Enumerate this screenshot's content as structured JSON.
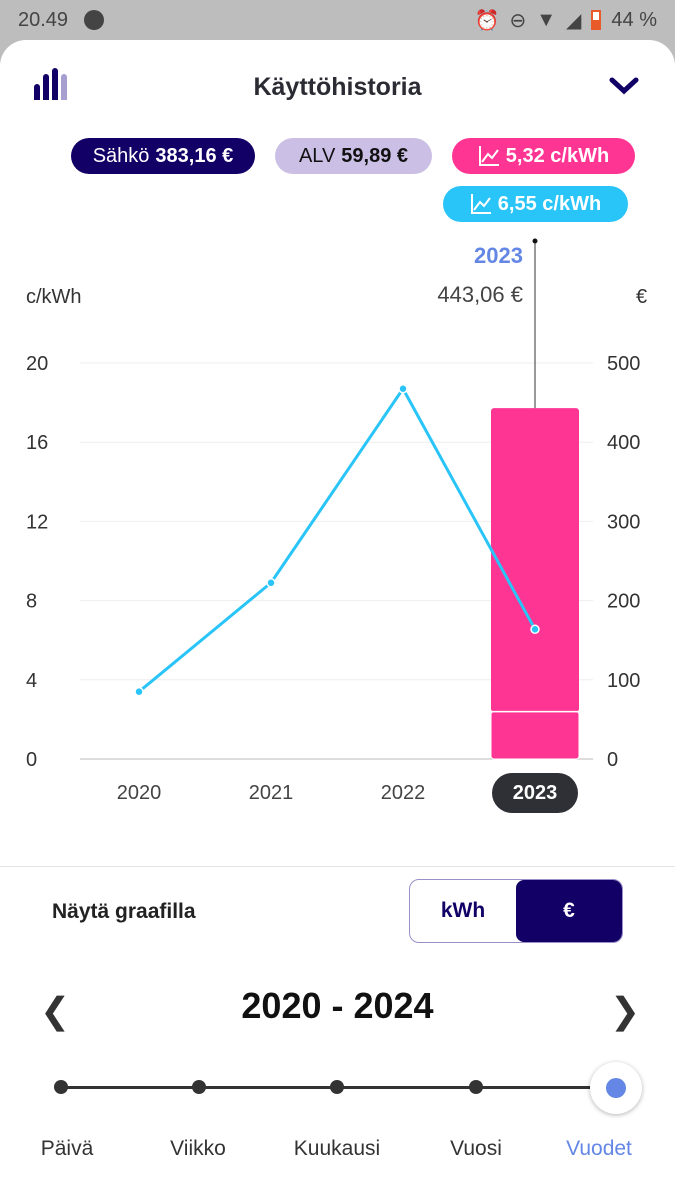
{
  "status_bar": {
    "time": "20.49",
    "battery": "44 %"
  },
  "header": {
    "title": "Käyttöhistoria"
  },
  "badges": {
    "electricity": {
      "label": "Sähkö",
      "value": "383,16 €"
    },
    "vat": {
      "label": "ALV",
      "value": "59,89 €"
    },
    "price_pink": "5,32 c/kWh",
    "price_blue": "6,55 c/kWh"
  },
  "colors": {
    "navy": "#120066",
    "lavender": "#cbbfe6",
    "pink": "#ff3593",
    "cyan": "#29c4f8",
    "accent": "#6487e6"
  },
  "chart_data": {
    "type": "bar+line",
    "categories": [
      "2020",
      "2021",
      "2022",
      "2023"
    ],
    "left_axis": {
      "label": "c/kWh",
      "ylim": [
        0,
        20
      ],
      "ticks": [
        "0",
        "4",
        "8",
        "12",
        "16",
        "20"
      ]
    },
    "right_axis": {
      "label": "€",
      "ylim": [
        0,
        500
      ],
      "ticks": [
        "0",
        "100",
        "200",
        "300",
        "400",
        "500"
      ]
    },
    "line_series": {
      "axis": "left",
      "values": [
        3.4,
        8.9,
        18.7,
        6.55
      ]
    },
    "bar_series": [
      {
        "axis": "right",
        "stack": [
          {
            "part": "ALV",
            "value": 59.89
          },
          {
            "part": "Sähkö",
            "value": 383.16
          }
        ],
        "category": "2023"
      }
    ],
    "tooltip": {
      "year": "2023",
      "total": "443,06 €"
    },
    "selected": "2023",
    "grid": true
  },
  "controls": {
    "show_label": "Näytä graafilla",
    "toggle": [
      "kWh",
      "€"
    ],
    "toggle_selected": "€",
    "range": "2020 - 2024",
    "periods": [
      "Päivä",
      "Viikko",
      "Kuukausi",
      "Vuosi",
      "Vuodet"
    ],
    "period_selected": "Vuodet"
  }
}
